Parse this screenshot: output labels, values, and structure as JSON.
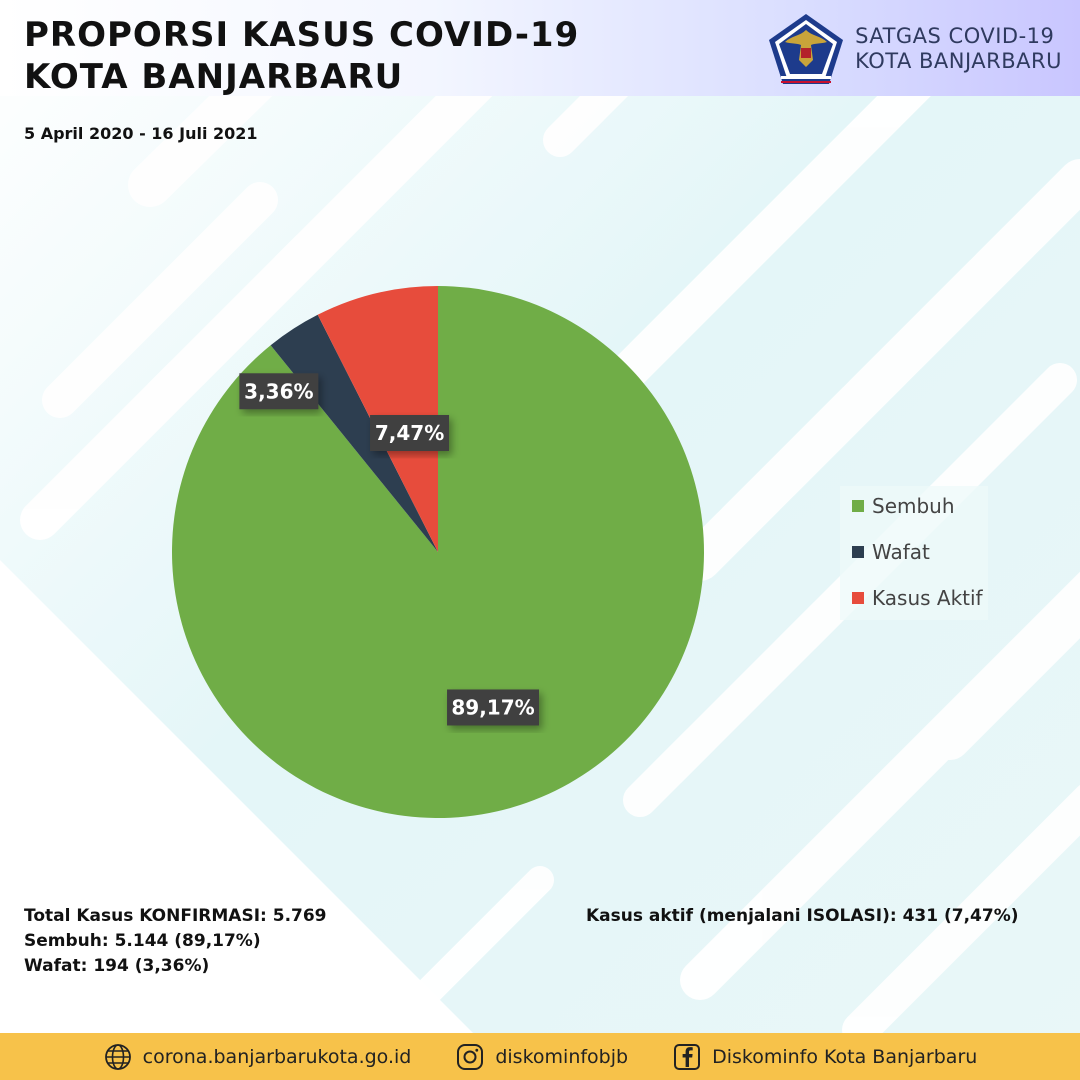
{
  "header": {
    "title_line1": "PROPORSI KASUS COVID-19",
    "title_line2": "KOTA BANJARBARU",
    "period": "5 April 2020 - 16 Juli 2021",
    "brand_line1": "SATGAS COVID-19",
    "brand_line2": "KOTA BANJARBARU"
  },
  "chart_data": {
    "type": "pie",
    "slices": [
      {
        "name": "Sembuh",
        "value": 89.17,
        "label": "89,17%",
        "color": "#70ad47"
      },
      {
        "name": "Wafat",
        "value": 3.36,
        "label": "3,36%",
        "color": "#2d3e50"
      },
      {
        "name": "Kasus Aktif",
        "value": 7.47,
        "label": "7,47%",
        "color": "#e74c3c"
      }
    ],
    "legend_position": "right"
  },
  "summary": {
    "total": "Total Kasus KONFIRMASI: 5.769",
    "sembuh": "Sembuh: 5.144 (89,17%)",
    "wafat": "Wafat: 194 (3,36%)",
    "aktif": "Kasus aktif (menjalani ISOLASI): 431 (7,47%)"
  },
  "footer": {
    "website": "corona.banjarbarukota.go.id",
    "instagram": "diskominfobjb",
    "facebook": "Diskominfo Kota Banjarbaru",
    "website_icon": "globe-icon",
    "instagram_icon": "instagram-icon",
    "facebook_icon": "facebook-icon"
  },
  "colors": {
    "footer_bg": "#f7c24a",
    "background_tint": "#e4f6f8"
  }
}
